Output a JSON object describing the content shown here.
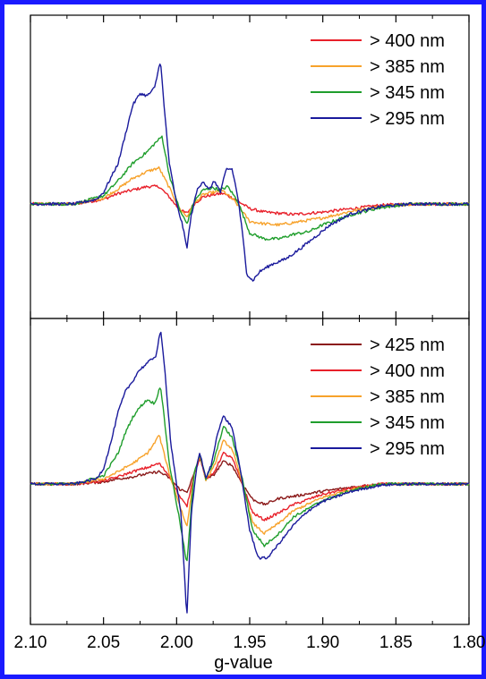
{
  "chart_data": [
    {
      "type": "line",
      "panel": "top",
      "xlabel": "",
      "ylabel": "",
      "xlim": [
        2.1,
        1.8
      ],
      "x_reversed": true,
      "grid": false,
      "legend_position": "top-right",
      "series": [
        {
          "name": "> 400 nm",
          "color": "#e8202a",
          "points": [
            [
              2.1,
              0
            ],
            [
              2.07,
              0
            ],
            [
              2.05,
              0.04
            ],
            [
              2.04,
              0.09
            ],
            [
              2.03,
              0.12
            ],
            [
              2.02,
              0.15
            ],
            [
              2.012,
              0.15
            ],
            [
              2.005,
              0.06
            ],
            [
              1.998,
              -0.05
            ],
            [
              1.993,
              -0.08
            ],
            [
              1.988,
              0
            ],
            [
              1.982,
              0.06
            ],
            [
              1.975,
              0.08
            ],
            [
              1.968,
              0.09
            ],
            [
              1.96,
              0.04
            ],
            [
              1.95,
              -0.04
            ],
            [
              1.94,
              -0.07
            ],
            [
              1.92,
              -0.09
            ],
            [
              1.9,
              -0.07
            ],
            [
              1.88,
              -0.04
            ],
            [
              1.86,
              -0.01
            ],
            [
              1.84,
              0
            ],
            [
              1.8,
              0
            ]
          ]
        },
        {
          "name": "> 385 nm",
          "color": "#f7a22b",
          "points": [
            [
              2.1,
              0
            ],
            [
              2.07,
              0
            ],
            [
              2.05,
              0.05
            ],
            [
              2.04,
              0.13
            ],
            [
              2.03,
              0.22
            ],
            [
              2.02,
              0.28
            ],
            [
              2.012,
              0.31
            ],
            [
              2.005,
              0.14
            ],
            [
              1.998,
              -0.04
            ],
            [
              1.993,
              -0.11
            ],
            [
              1.988,
              0
            ],
            [
              1.982,
              0.08
            ],
            [
              1.975,
              0.1
            ],
            [
              1.968,
              0.11
            ],
            [
              1.96,
              0.02
            ],
            [
              1.95,
              -0.15
            ],
            [
              1.94,
              -0.17
            ],
            [
              1.93,
              -0.18
            ],
            [
              1.92,
              -0.16
            ],
            [
              1.9,
              -0.12
            ],
            [
              1.88,
              -0.06
            ],
            [
              1.86,
              -0.02
            ],
            [
              1.84,
              0
            ],
            [
              1.8,
              0
            ]
          ]
        },
        {
          "name": "> 345 nm",
          "color": "#1f9e2c",
          "points": [
            [
              2.1,
              0
            ],
            [
              2.07,
              0
            ],
            [
              2.05,
              0.07
            ],
            [
              2.04,
              0.2
            ],
            [
              2.03,
              0.35
            ],
            [
              2.02,
              0.45
            ],
            [
              2.015,
              0.52
            ],
            [
              2.01,
              0.58
            ],
            [
              2.005,
              0.25
            ],
            [
              1.998,
              -0.05
            ],
            [
              1.993,
              -0.17
            ],
            [
              1.988,
              0.02
            ],
            [
              1.982,
              0.12
            ],
            [
              1.975,
              0.14
            ],
            [
              1.97,
              0.12
            ],
            [
              1.965,
              0.15
            ],
            [
              1.958,
              0.02
            ],
            [
              1.95,
              -0.25
            ],
            [
              1.94,
              -0.3
            ],
            [
              1.93,
              -0.3
            ],
            [
              1.92,
              -0.26
            ],
            [
              1.91,
              -0.24
            ],
            [
              1.9,
              -0.18
            ],
            [
              1.88,
              -0.09
            ],
            [
              1.86,
              -0.03
            ],
            [
              1.84,
              0
            ],
            [
              1.8,
              0
            ]
          ]
        },
        {
          "name": "> 295 nm",
          "color": "#1a1a9c",
          "points": [
            [
              2.1,
              0
            ],
            [
              2.07,
              0
            ],
            [
              2.055,
              0.04
            ],
            [
              2.05,
              0.1
            ],
            [
              2.04,
              0.35
            ],
            [
              2.035,
              0.6
            ],
            [
              2.03,
              0.85
            ],
            [
              2.025,
              0.95
            ],
            [
              2.02,
              0.93
            ],
            [
              2.015,
              1.0
            ],
            [
              2.011,
              1.24
            ],
            [
              2.009,
              0.9
            ],
            [
              2.005,
              0.35
            ],
            [
              2.0,
              0
            ],
            [
              1.996,
              -0.18
            ],
            [
              1.993,
              -0.38
            ],
            [
              1.99,
              -0.1
            ],
            [
              1.986,
              0.12
            ],
            [
              1.982,
              0.2
            ],
            [
              1.978,
              0.12
            ],
            [
              1.974,
              0.2
            ],
            [
              1.97,
              0.1
            ],
            [
              1.966,
              0.3
            ],
            [
              1.962,
              0.3
            ],
            [
              1.958,
              0.05
            ],
            [
              1.955,
              -0.25
            ],
            [
              1.952,
              -0.6
            ],
            [
              1.948,
              -0.66
            ],
            [
              1.943,
              -0.58
            ],
            [
              1.935,
              -0.52
            ],
            [
              1.925,
              -0.47
            ],
            [
              1.915,
              -0.38
            ],
            [
              1.905,
              -0.28
            ],
            [
              1.895,
              -0.18
            ],
            [
              1.88,
              -0.08
            ],
            [
              1.86,
              -0.02
            ],
            [
              1.84,
              0
            ],
            [
              1.8,
              0
            ]
          ]
        }
      ]
    },
    {
      "type": "line",
      "panel": "bottom",
      "xlabel": "g-value",
      "ylabel": "",
      "xlim": [
        2.1,
        1.8
      ],
      "x_reversed": true,
      "x_ticks": [
        2.1,
        2.05,
        2.0,
        1.95,
        1.9,
        1.85,
        1.8
      ],
      "x_tick_labels": [
        "2.10",
        "2.05",
        "2.00",
        "1.95",
        "1.90",
        "1.85",
        "1.80"
      ],
      "grid": false,
      "legend_position": "top-right",
      "series": [
        {
          "name": "> 425 nm",
          "color": "#8b1a1a",
          "points": [
            [
              2.1,
              0
            ],
            [
              2.07,
              0
            ],
            [
              2.05,
              0.02
            ],
            [
              2.04,
              0.05
            ],
            [
              2.03,
              0.07
            ],
            [
              2.02,
              0.1
            ],
            [
              2.012,
              0.12
            ],
            [
              2.005,
              0.06
            ],
            [
              1.998,
              -0.05
            ],
            [
              1.993,
              -0.08
            ],
            [
              1.988,
              0.1
            ],
            [
              1.984,
              0.25
            ],
            [
              1.98,
              0.05
            ],
            [
              1.975,
              0.08
            ],
            [
              1.968,
              0.22
            ],
            [
              1.962,
              0.18
            ],
            [
              1.955,
              0
            ],
            [
              1.948,
              -0.15
            ],
            [
              1.94,
              -0.2
            ],
            [
              1.93,
              -0.14
            ],
            [
              1.92,
              -0.12
            ],
            [
              1.9,
              -0.07
            ],
            [
              1.88,
              -0.03
            ],
            [
              1.86,
              0
            ],
            [
              1.8,
              0
            ]
          ]
        },
        {
          "name": "> 400 nm",
          "color": "#e8202a",
          "points": [
            [
              2.1,
              0
            ],
            [
              2.07,
              0
            ],
            [
              2.05,
              0.03
            ],
            [
              2.04,
              0.07
            ],
            [
              2.03,
              0.12
            ],
            [
              2.02,
              0.16
            ],
            [
              2.012,
              0.2
            ],
            [
              2.005,
              0.08
            ],
            [
              1.998,
              -0.12
            ],
            [
              1.993,
              -0.22
            ],
            [
              1.988,
              0.1
            ],
            [
              1.984,
              0.26
            ],
            [
              1.98,
              0.05
            ],
            [
              1.975,
              0.1
            ],
            [
              1.968,
              0.3
            ],
            [
              1.962,
              0.25
            ],
            [
              1.955,
              0
            ],
            [
              1.948,
              -0.28
            ],
            [
              1.94,
              -0.35
            ],
            [
              1.93,
              -0.28
            ],
            [
              1.92,
              -0.2
            ],
            [
              1.9,
              -0.1
            ],
            [
              1.88,
              -0.04
            ],
            [
              1.86,
              0
            ],
            [
              1.8,
              0
            ]
          ]
        },
        {
          "name": "> 385 nm",
          "color": "#f7a22b",
          "points": [
            [
              2.1,
              0
            ],
            [
              2.07,
              0
            ],
            [
              2.05,
              0.05
            ],
            [
              2.04,
              0.12
            ],
            [
              2.03,
              0.2
            ],
            [
              2.02,
              0.3
            ],
            [
              2.015,
              0.4
            ],
            [
              2.012,
              0.48
            ],
            [
              2.005,
              0.1
            ],
            [
              1.998,
              -0.2
            ],
            [
              1.993,
              -0.42
            ],
            [
              1.988,
              0.1
            ],
            [
              1.984,
              0.28
            ],
            [
              1.98,
              0.04
            ],
            [
              1.975,
              0.15
            ],
            [
              1.968,
              0.42
            ],
            [
              1.962,
              0.34
            ],
            [
              1.955,
              0
            ],
            [
              1.948,
              -0.38
            ],
            [
              1.94,
              -0.48
            ],
            [
              1.93,
              -0.38
            ],
            [
              1.92,
              -0.26
            ],
            [
              1.9,
              -0.13
            ],
            [
              1.88,
              -0.05
            ],
            [
              1.86,
              0
            ],
            [
              1.8,
              0
            ]
          ]
        },
        {
          "name": "> 345 nm",
          "color": "#1f9e2c",
          "points": [
            [
              2.1,
              0
            ],
            [
              2.07,
              0
            ],
            [
              2.05,
              0.08
            ],
            [
              2.04,
              0.3
            ],
            [
              2.035,
              0.5
            ],
            [
              2.03,
              0.65
            ],
            [
              2.025,
              0.75
            ],
            [
              2.02,
              0.82
            ],
            [
              2.015,
              0.78
            ],
            [
              2.011,
              0.96
            ],
            [
              2.005,
              0.2
            ],
            [
              1.998,
              -0.35
            ],
            [
              1.993,
              -0.78
            ],
            [
              1.988,
              0.12
            ],
            [
              1.984,
              0.29
            ],
            [
              1.98,
              0.05
            ],
            [
              1.975,
              0.2
            ],
            [
              1.968,
              0.56
            ],
            [
              1.962,
              0.45
            ],
            [
              1.955,
              0.05
            ],
            [
              1.948,
              -0.45
            ],
            [
              1.94,
              -0.6
            ],
            [
              1.93,
              -0.48
            ],
            [
              1.92,
              -0.32
            ],
            [
              1.9,
              -0.16
            ],
            [
              1.88,
              -0.06
            ],
            [
              1.86,
              0
            ],
            [
              1.8,
              0
            ]
          ]
        },
        {
          "name": "> 295 nm",
          "color": "#1a1a9c",
          "points": [
            [
              2.1,
              0
            ],
            [
              2.07,
              0
            ],
            [
              2.055,
              0.05
            ],
            [
              2.05,
              0.15
            ],
            [
              2.045,
              0.4
            ],
            [
              2.04,
              0.7
            ],
            [
              2.035,
              0.9
            ],
            [
              2.03,
              1.0
            ],
            [
              2.026,
              1.1
            ],
            [
              2.022,
              1.15
            ],
            [
              2.018,
              1.2
            ],
            [
              2.014,
              1.25
            ],
            [
              2.011,
              1.5
            ],
            [
              2.008,
              1.1
            ],
            [
              2.004,
              0.4
            ],
            [
              2.0,
              0
            ],
            [
              1.997,
              -0.3
            ],
            [
              1.993,
              -1.3
            ],
            [
              1.99,
              -0.3
            ],
            [
              1.986,
              0.2
            ],
            [
              1.984,
              0.3
            ],
            [
              1.98,
              0.05
            ],
            [
              1.976,
              0.2
            ],
            [
              1.972,
              0.5
            ],
            [
              1.968,
              0.66
            ],
            [
              1.962,
              0.55
            ],
            [
              1.956,
              0.1
            ],
            [
              1.95,
              -0.45
            ],
            [
              1.944,
              -0.72
            ],
            [
              1.938,
              -0.72
            ],
            [
              1.93,
              -0.58
            ],
            [
              1.92,
              -0.4
            ],
            [
              1.91,
              -0.26
            ],
            [
              1.9,
              -0.17
            ],
            [
              1.88,
              -0.07
            ],
            [
              1.86,
              -0.01
            ],
            [
              1.84,
              0
            ],
            [
              1.8,
              0
            ]
          ]
        }
      ]
    }
  ]
}
